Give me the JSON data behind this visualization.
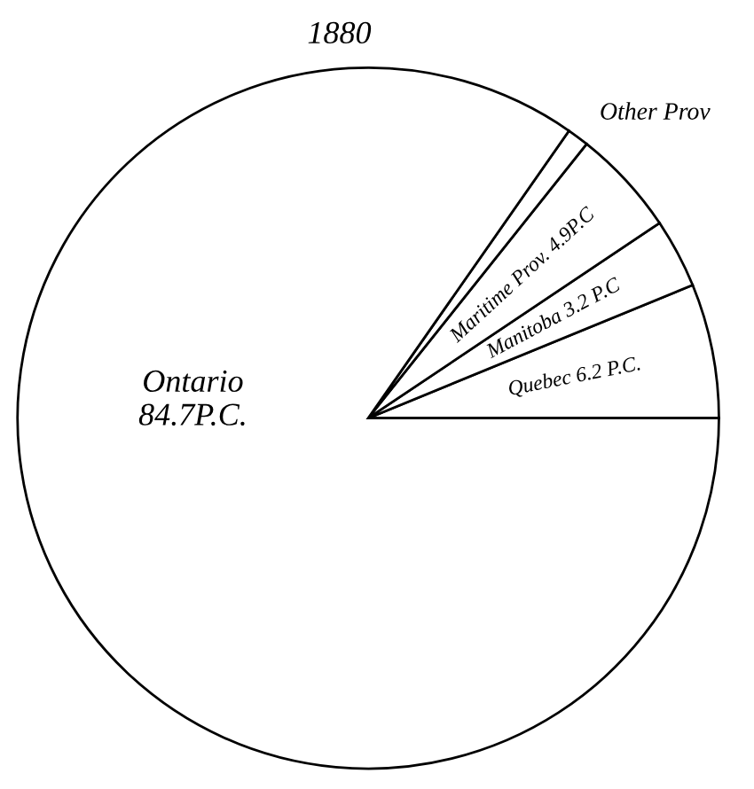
{
  "chart_data": {
    "type": "pie",
    "title": "1880",
    "categories": [
      "Quebec",
      "Manitoba",
      "Maritime Prov.",
      "Other Prov",
      "Ontario"
    ],
    "values": [
      6.2,
      3.2,
      4.9,
      1.0,
      84.7
    ],
    "value_labels": [
      "6.2 P.C.",
      "3.2 P.C",
      "4.9P.C",
      null,
      "84.7P.C."
    ],
    "colors": [
      "#ffffff",
      "#ffffff",
      "#ffffff",
      "#ffffff",
      "#ffffff"
    ]
  }
}
